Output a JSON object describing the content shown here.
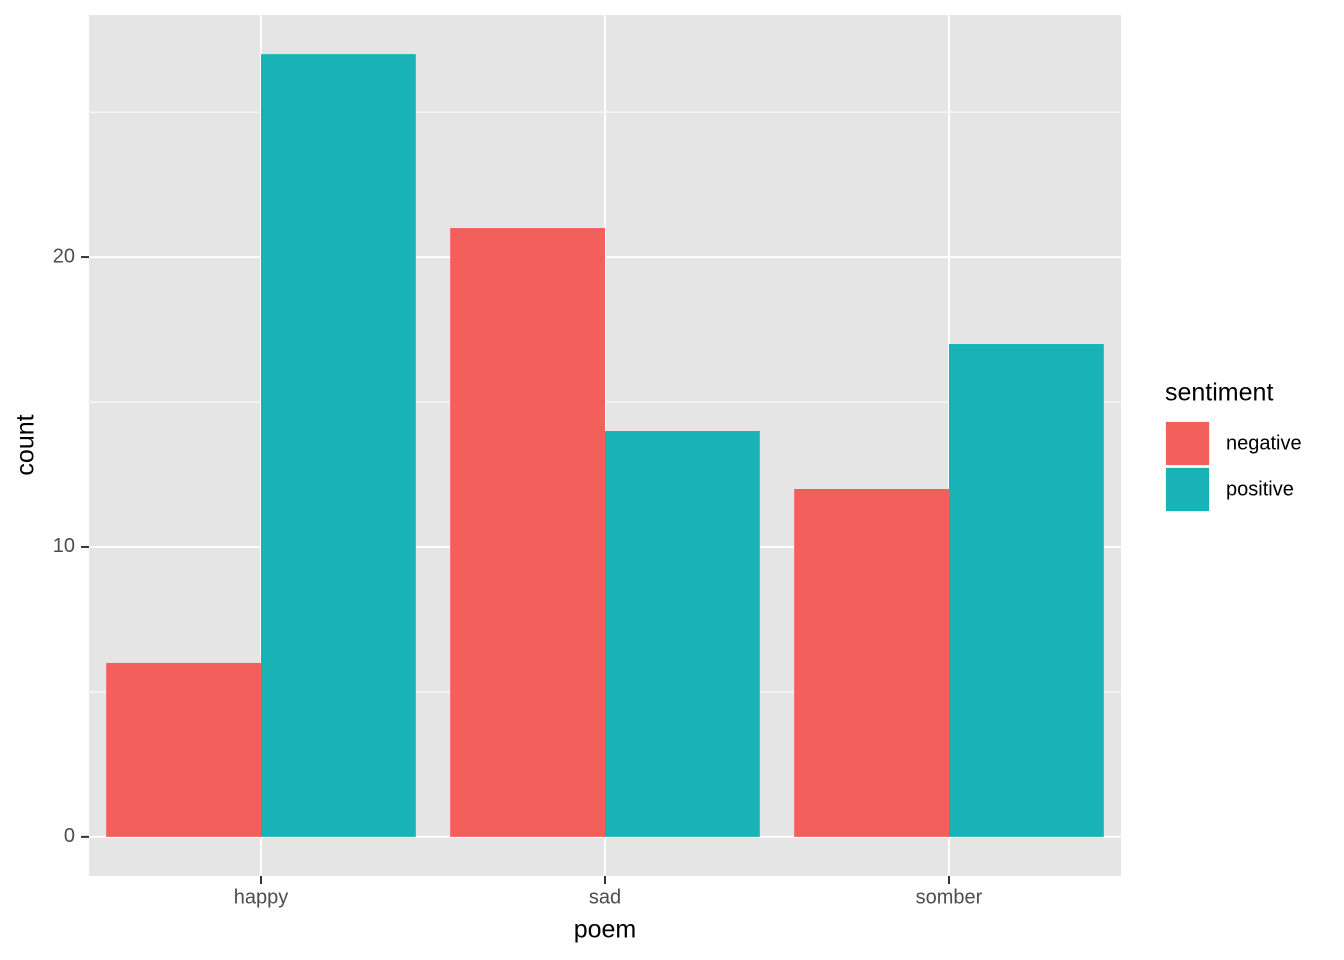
{
  "chart_data": {
    "type": "bar",
    "x_label": "poem",
    "y_label": "count",
    "categories": [
      "happy",
      "sad",
      "somber"
    ],
    "legend_title": "sentiment",
    "series": [
      {
        "name": "negative",
        "color": "#f35f5a",
        "values": [
          6,
          21,
          12
        ]
      },
      {
        "name": "positive",
        "color": "#19b3b7",
        "values": [
          27,
          14,
          17
        ]
      }
    ],
    "ylim": [
      -1.35,
      28.35
    ],
    "yticks": [
      0,
      10,
      20
    ],
    "minor_yticks": [
      5,
      15,
      25
    ],
    "grid": true,
    "legend_position": "right"
  }
}
